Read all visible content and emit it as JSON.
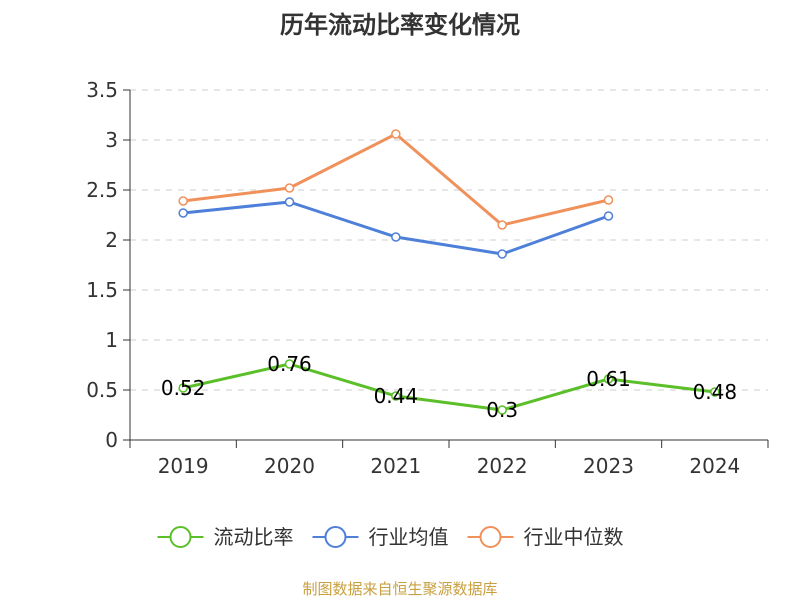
{
  "chart_data": {
    "type": "line",
    "title": "历年流动比率变化情况",
    "categories": [
      "2019",
      "2020",
      "2021",
      "2022",
      "2023",
      "2024"
    ],
    "ylim": [
      0,
      3.5
    ],
    "yticks": [
      "0",
      "0.5",
      "1",
      "1.5",
      "2",
      "2.5",
      "3",
      "3.5"
    ],
    "grid": true,
    "legend_position": "bottom",
    "series": [
      {
        "name": "流动比率",
        "color": "#5bbf2a",
        "values": [
          0.52,
          0.76,
          0.44,
          0.3,
          0.61,
          0.48
        ],
        "labels": [
          "0.52",
          "0.76",
          "0.44",
          "0.3",
          "0.61",
          "0.48"
        ]
      },
      {
        "name": "行业均值",
        "color": "#4e7fd9",
        "values": [
          2.27,
          2.38,
          2.03,
          1.86,
          2.24,
          null
        ]
      },
      {
        "name": "行业中位数",
        "color": "#f0905a",
        "values": [
          2.39,
          2.52,
          3.06,
          2.15,
          2.4,
          null
        ]
      }
    ],
    "source": "制图数据来自恒生聚源数据库"
  }
}
